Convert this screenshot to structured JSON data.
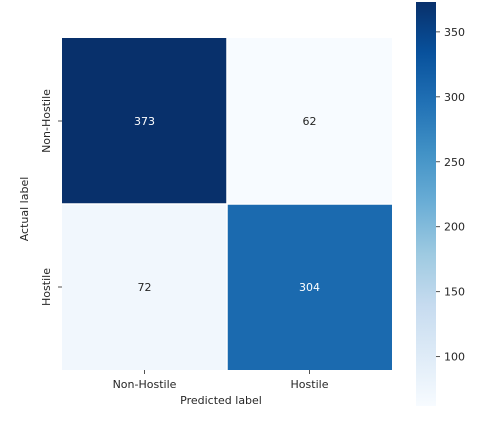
{
  "chart_data": {
    "type": "heatmap",
    "title": "",
    "xlabel": "Predicted label",
    "ylabel": "Actual label",
    "x_categories": [
      "Non-Hostile",
      "Hostile"
    ],
    "y_categories": [
      "Non-Hostile",
      "Hostile"
    ],
    "values": [
      [
        373,
        62
      ],
      [
        72,
        304
      ]
    ],
    "colormap": "Blues",
    "colorbar": {
      "min": 62,
      "max": 373,
      "ticks": [
        100,
        150,
        200,
        250,
        300,
        350
      ],
      "tick_labels": [
        "100",
        "150",
        "200",
        "250",
        "300",
        "350"
      ]
    },
    "cell_text_colors": {
      "dark_cell": "#ffffff",
      "light_cell": "#262626"
    },
    "colors": {
      "colormap_stops": [
        "#f7fbff",
        "#deebf7",
        "#c6dbef",
        "#9ecae1",
        "#6baed6",
        "#4292c6",
        "#2171b5",
        "#08519c",
        "#08306b"
      ]
    }
  }
}
